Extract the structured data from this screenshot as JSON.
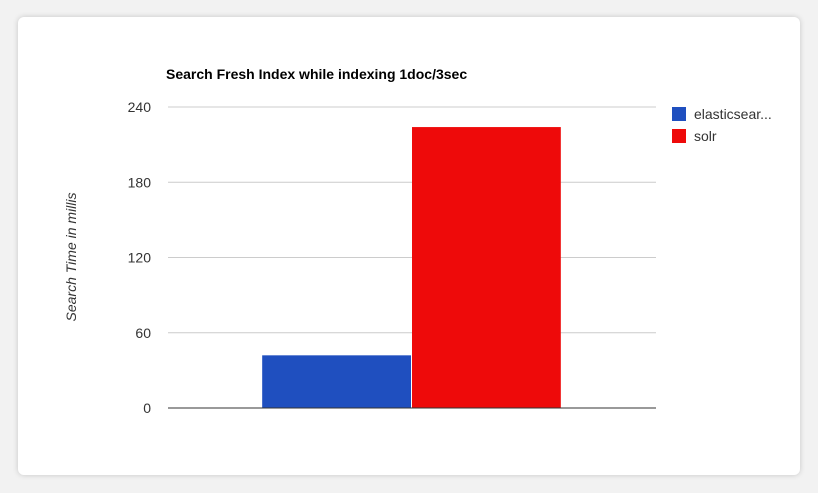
{
  "chart_data": {
    "type": "bar",
    "title": "Search Fresh Index while indexing 1doc/3sec",
    "xlabel": "",
    "ylabel": "Search Time in millis",
    "categories": [
      ""
    ],
    "series": [
      {
        "name": "elasticsear...",
        "values": [
          42
        ],
        "color": "#1f4fbf"
      },
      {
        "name": "solr",
        "values": [
          224
        ],
        "color": "#ee0a0a"
      }
    ],
    "ylim": [
      0,
      240
    ],
    "yticks": [
      0,
      60,
      120,
      180,
      240
    ],
    "grid": true,
    "legend_position": "right"
  }
}
